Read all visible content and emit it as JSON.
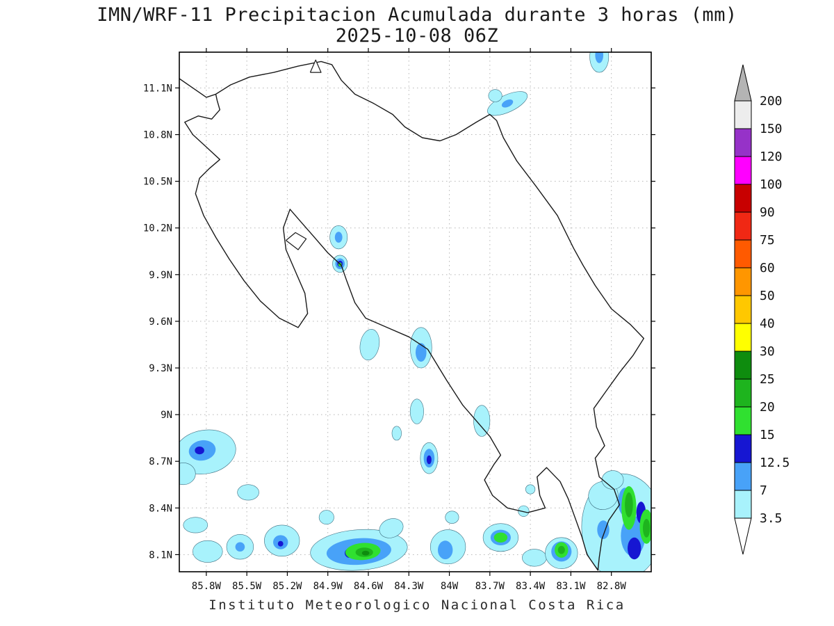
{
  "title": {
    "line1": "IMN/WRF-11 Precipitacion Acumulada durante 3 horas (mm)",
    "line2": "2025-10-08 06Z"
  },
  "footer": {
    "caption": "Instituto Meteorologico Nacional Costa Rica"
  },
  "chart_data": {
    "type": "heatmap",
    "title": "IMN/WRF-11 Precipitacion Acumulada durante 3 horas (mm)",
    "subtitle": "2025-10-08 06Z",
    "units": "mm",
    "region": "Costa Rica",
    "grid": {
      "style": "dotted",
      "color": "#b4b4b4"
    },
    "frame_color": "#000000",
    "coast_color": "#1a1a1a",
    "lon_axis": {
      "ticks": [
        "85.8W",
        "85.5W",
        "85.2W",
        "84.9W",
        "84.6W",
        "84.3W",
        "84W",
        "83.7W",
        "83.4W",
        "83.1W",
        "82.8W"
      ],
      "range_w": [
        86.0,
        82.505
      ]
    },
    "lat_axis": {
      "ticks": [
        "11.1N",
        "10.8N",
        "10.5N",
        "10.2N",
        "9.9N",
        "9.6N",
        "9.3N",
        "9N",
        "8.7N",
        "8.4N",
        "8.1N"
      ],
      "range": [
        7.99,
        11.33
      ]
    },
    "colorbar": {
      "levels": [
        "3.5",
        "7",
        "12.5",
        "15",
        "20",
        "25",
        "30",
        "40",
        "50",
        "60",
        "75",
        "90",
        "100",
        "120",
        "150",
        "200"
      ],
      "segment_colors_bottom_to_top": [
        "#a8f2fc",
        "#48a2f8",
        "#1616d2",
        "#30e030",
        "#1eb41e",
        "#0e8c0e",
        "#ffff00",
        "#ffc800",
        "#ff9600",
        "#ff5a00",
        "#f02814",
        "#c80000",
        "#ff00ff",
        "#9632c8",
        "#ededed"
      ],
      "under_color": "#ffffff",
      "over_color": "#b4b4b4",
      "level_colors": {
        "3.5": "#a8f2fc",
        "7": "#48a2f8",
        "12.5": "#1616d2",
        "15": "#30e030",
        "20": "#1eb41e",
        "25": "#0e8c0e"
      }
    },
    "coastline": {
      "mainland": [
        [
          86.0,
          11.16
        ],
        [
          85.9,
          11.1
        ],
        [
          85.8,
          11.04
        ],
        [
          85.73,
          11.06
        ],
        [
          85.62,
          11.12
        ],
        [
          85.48,
          11.17
        ],
        [
          85.3,
          11.2
        ],
        [
          85.12,
          11.24
        ],
        [
          84.95,
          11.27
        ],
        [
          84.87,
          11.25
        ],
        [
          84.8,
          11.15
        ],
        [
          84.7,
          11.06
        ],
        [
          84.56,
          11.0
        ],
        [
          84.42,
          10.93
        ],
        [
          84.33,
          10.85
        ],
        [
          84.2,
          10.78
        ],
        [
          84.07,
          10.76
        ],
        [
          83.95,
          10.8
        ],
        [
          83.8,
          10.88
        ],
        [
          83.7,
          10.93
        ],
        [
          83.65,
          10.89
        ],
        [
          83.6,
          10.78
        ],
        [
          83.5,
          10.63
        ],
        [
          83.36,
          10.47
        ],
        [
          83.2,
          10.28
        ],
        [
          83.08,
          10.07
        ],
        [
          83.01,
          9.96
        ],
        [
          82.92,
          9.83
        ],
        [
          82.8,
          9.68
        ],
        [
          82.66,
          9.58
        ],
        [
          82.56,
          9.49
        ],
        [
          82.64,
          9.38
        ],
        [
          82.74,
          9.27
        ],
        [
          82.84,
          9.15
        ],
        [
          82.93,
          9.04
        ],
        [
          82.91,
          8.92
        ],
        [
          82.85,
          8.8
        ],
        [
          82.92,
          8.72
        ],
        [
          82.89,
          8.6
        ],
        [
          82.78,
          8.52
        ],
        [
          82.74,
          8.42
        ],
        [
          82.82,
          8.32
        ],
        [
          82.87,
          8.2
        ],
        [
          82.89,
          8.08
        ],
        [
          82.9,
          8.0
        ],
        [
          82.98,
          8.1
        ],
        [
          83.02,
          8.22
        ],
        [
          83.07,
          8.34
        ],
        [
          83.12,
          8.46
        ],
        [
          83.18,
          8.57
        ],
        [
          83.28,
          8.66
        ],
        [
          83.35,
          8.6
        ],
        [
          83.33,
          8.48
        ],
        [
          83.29,
          8.4
        ],
        [
          83.42,
          8.37
        ],
        [
          83.57,
          8.4
        ],
        [
          83.68,
          8.48
        ],
        [
          83.74,
          8.58
        ],
        [
          83.67,
          8.68
        ],
        [
          83.62,
          8.74
        ],
        [
          83.7,
          8.86
        ],
        [
          83.8,
          8.96
        ],
        [
          83.9,
          9.06
        ],
        [
          84.02,
          9.22
        ],
        [
          84.16,
          9.42
        ],
        [
          84.3,
          9.5
        ],
        [
          84.46,
          9.56
        ],
        [
          84.62,
          9.62
        ],
        [
          84.7,
          9.72
        ],
        [
          84.76,
          9.86
        ],
        [
          84.8,
          9.96
        ],
        [
          84.9,
          10.04
        ],
        [
          85.0,
          10.14
        ],
        [
          85.1,
          10.24
        ],
        [
          85.18,
          10.32
        ],
        [
          85.23,
          10.2
        ],
        [
          85.21,
          10.06
        ],
        [
          85.14,
          9.92
        ],
        [
          85.07,
          9.78
        ],
        [
          85.05,
          9.65
        ],
        [
          85.12,
          9.56
        ],
        [
          85.26,
          9.62
        ],
        [
          85.4,
          9.73
        ],
        [
          85.52,
          9.86
        ],
        [
          85.63,
          10.0
        ],
        [
          85.73,
          10.14
        ],
        [
          85.82,
          10.28
        ],
        [
          85.88,
          10.42
        ],
        [
          85.85,
          10.52
        ],
        [
          85.78,
          10.58
        ],
        [
          85.7,
          10.64
        ],
        [
          85.8,
          10.72
        ],
        [
          85.9,
          10.8
        ],
        [
          85.96,
          10.88
        ],
        [
          85.86,
          10.92
        ],
        [
          85.76,
          10.9
        ],
        [
          85.7,
          10.96
        ],
        [
          85.72,
          11.02
        ],
        [
          85.73,
          11.06
        ]
      ],
      "chira_island": [
        [
          85.21,
          10.12
        ],
        [
          85.14,
          10.17
        ],
        [
          85.06,
          10.13
        ],
        [
          85.12,
          10.06
        ],
        [
          85.21,
          10.12
        ]
      ],
      "lake_islet": [
        [
          85.03,
          11.2
        ],
        [
          84.99,
          11.28
        ],
        [
          84.95,
          11.2
        ],
        [
          85.03,
          11.2
        ]
      ]
    },
    "precip_blobs": [
      {
        "lon": 82.89,
        "lat": 11.3,
        "rx": 0.07,
        "ry": 0.1,
        "rot": 0,
        "level": "3.5"
      },
      {
        "lon": 83.57,
        "lat": 11.0,
        "rx": 0.16,
        "ry": 0.055,
        "rot": -25,
        "level": "3.5"
      },
      {
        "lon": 83.66,
        "lat": 11.05,
        "rx": 0.05,
        "ry": 0.04,
        "rot": 0,
        "level": "3.5"
      },
      {
        "lon": 84.82,
        "lat": 10.14,
        "rx": 0.065,
        "ry": 0.075,
        "rot": 0,
        "level": "3.5"
      },
      {
        "lon": 84.81,
        "lat": 9.97,
        "rx": 0.055,
        "ry": 0.055,
        "rot": 0,
        "level": "3.5"
      },
      {
        "lon": 84.59,
        "lat": 9.45,
        "rx": 0.07,
        "ry": 0.1,
        "rot": 10,
        "level": "3.5"
      },
      {
        "lon": 84.21,
        "lat": 9.43,
        "rx": 0.08,
        "ry": 0.13,
        "rot": 0,
        "level": "3.5"
      },
      {
        "lon": 84.24,
        "lat": 9.02,
        "rx": 0.05,
        "ry": 0.08,
        "rot": 0,
        "level": "3.5"
      },
      {
        "lon": 84.39,
        "lat": 8.88,
        "rx": 0.035,
        "ry": 0.045,
        "rot": 0,
        "level": "3.5"
      },
      {
        "lon": 83.76,
        "lat": 8.96,
        "rx": 0.06,
        "ry": 0.1,
        "rot": 0,
        "level": "3.5"
      },
      {
        "lon": 84.15,
        "lat": 8.72,
        "rx": 0.065,
        "ry": 0.1,
        "rot": 0,
        "level": "3.5"
      },
      {
        "lon": 85.81,
        "lat": 8.76,
        "rx": 0.23,
        "ry": 0.14,
        "rot": -10,
        "level": "3.5"
      },
      {
        "lon": 85.97,
        "lat": 8.62,
        "rx": 0.09,
        "ry": 0.07,
        "rot": 0,
        "level": "3.5"
      },
      {
        "lon": 85.49,
        "lat": 8.5,
        "rx": 0.08,
        "ry": 0.05,
        "rot": 0,
        "level": "3.5"
      },
      {
        "lon": 85.88,
        "lat": 8.29,
        "rx": 0.09,
        "ry": 0.05,
        "rot": 0,
        "level": "3.5"
      },
      {
        "lon": 85.79,
        "lat": 8.12,
        "rx": 0.11,
        "ry": 0.07,
        "rot": 0,
        "level": "3.5"
      },
      {
        "lon": 85.55,
        "lat": 8.15,
        "rx": 0.1,
        "ry": 0.08,
        "rot": 0,
        "level": "3.5"
      },
      {
        "lon": 85.24,
        "lat": 8.19,
        "rx": 0.13,
        "ry": 0.1,
        "rot": 0,
        "level": "3.5"
      },
      {
        "lon": 84.91,
        "lat": 8.34,
        "rx": 0.055,
        "ry": 0.045,
        "rot": 0,
        "level": "3.5"
      },
      {
        "lon": 84.67,
        "lat": 8.13,
        "rx": 0.36,
        "ry": 0.13,
        "rot": -4,
        "level": "3.5"
      },
      {
        "lon": 84.43,
        "lat": 8.27,
        "rx": 0.09,
        "ry": 0.06,
        "rot": -20,
        "level": "3.5"
      },
      {
        "lon": 84.01,
        "lat": 8.15,
        "rx": 0.13,
        "ry": 0.11,
        "rot": 0,
        "level": "3.5"
      },
      {
        "lon": 83.98,
        "lat": 8.34,
        "rx": 0.05,
        "ry": 0.04,
        "rot": 0,
        "level": "3.5"
      },
      {
        "lon": 83.62,
        "lat": 8.21,
        "rx": 0.13,
        "ry": 0.09,
        "rot": 0,
        "level": "3.5"
      },
      {
        "lon": 83.37,
        "lat": 8.08,
        "rx": 0.09,
        "ry": 0.055,
        "rot": 0,
        "level": "3.5"
      },
      {
        "lon": 83.17,
        "lat": 8.11,
        "rx": 0.12,
        "ry": 0.1,
        "rot": 0,
        "level": "3.5"
      },
      {
        "lon": 82.72,
        "lat": 8.28,
        "rx": 0.3,
        "ry": 0.34,
        "rot": 0,
        "level": "3.5"
      },
      {
        "lon": 82.86,
        "lat": 8.48,
        "rx": 0.11,
        "ry": 0.09,
        "rot": -20,
        "level": "3.5"
      },
      {
        "lon": 82.79,
        "lat": 8.58,
        "rx": 0.08,
        "ry": 0.06,
        "rot": 0,
        "level": "3.5"
      },
      {
        "lon": 83.45,
        "lat": 8.38,
        "rx": 0.04,
        "ry": 0.035,
        "rot": 0,
        "level": "3.5"
      },
      {
        "lon": 83.4,
        "lat": 8.52,
        "rx": 0.035,
        "ry": 0.03,
        "rot": 0,
        "level": "3.5"
      },
      {
        "lon": 82.89,
        "lat": 11.31,
        "rx": 0.03,
        "ry": 0.05,
        "rot": 0,
        "level": "7"
      },
      {
        "lon": 83.57,
        "lat": 11.0,
        "rx": 0.045,
        "ry": 0.022,
        "rot": -25,
        "level": "7"
      },
      {
        "lon": 84.82,
        "lat": 10.14,
        "rx": 0.028,
        "ry": 0.035,
        "rot": 0,
        "level": "7"
      },
      {
        "lon": 84.81,
        "lat": 9.97,
        "rx": 0.035,
        "ry": 0.035,
        "rot": 0,
        "level": "7"
      },
      {
        "lon": 84.21,
        "lat": 9.4,
        "rx": 0.04,
        "ry": 0.06,
        "rot": 0,
        "level": "7"
      },
      {
        "lon": 84.15,
        "lat": 8.72,
        "rx": 0.04,
        "ry": 0.06,
        "rot": 0,
        "level": "7"
      },
      {
        "lon": 85.83,
        "lat": 8.77,
        "rx": 0.1,
        "ry": 0.065,
        "rot": -10,
        "level": "7"
      },
      {
        "lon": 85.55,
        "lat": 8.15,
        "rx": 0.035,
        "ry": 0.03,
        "rot": 0,
        "level": "7"
      },
      {
        "lon": 85.25,
        "lat": 8.18,
        "rx": 0.055,
        "ry": 0.045,
        "rot": 0,
        "level": "7"
      },
      {
        "lon": 84.67,
        "lat": 8.12,
        "rx": 0.24,
        "ry": 0.085,
        "rot": -4,
        "level": "7"
      },
      {
        "lon": 84.03,
        "lat": 8.13,
        "rx": 0.055,
        "ry": 0.06,
        "rot": 0,
        "level": "7"
      },
      {
        "lon": 83.62,
        "lat": 8.21,
        "rx": 0.075,
        "ry": 0.05,
        "rot": 0,
        "level": "7"
      },
      {
        "lon": 83.17,
        "lat": 8.12,
        "rx": 0.075,
        "ry": 0.065,
        "rot": 0,
        "level": "7"
      },
      {
        "lon": 82.64,
        "lat": 8.22,
        "rx": 0.09,
        "ry": 0.13,
        "rot": 0,
        "level": "7"
      },
      {
        "lon": 82.86,
        "lat": 8.26,
        "rx": 0.045,
        "ry": 0.06,
        "rot": 0,
        "level": "7"
      },
      {
        "lon": 82.7,
        "lat": 8.44,
        "rx": 0.05,
        "ry": 0.09,
        "rot": 0,
        "level": "7"
      },
      {
        "lon": 84.81,
        "lat": 9.97,
        "rx": 0.02,
        "ry": 0.02,
        "rot": 0,
        "level": "12.5"
      },
      {
        "lon": 84.15,
        "lat": 8.71,
        "rx": 0.018,
        "ry": 0.028,
        "rot": 0,
        "level": "12.5"
      },
      {
        "lon": 85.85,
        "lat": 8.77,
        "rx": 0.035,
        "ry": 0.025,
        "rot": 0,
        "level": "12.5"
      },
      {
        "lon": 84.74,
        "lat": 8.11,
        "rx": 0.035,
        "ry": 0.03,
        "rot": 0,
        "level": "12.5"
      },
      {
        "lon": 82.63,
        "lat": 8.14,
        "rx": 0.05,
        "ry": 0.07,
        "rot": 0,
        "level": "12.5"
      },
      {
        "lon": 82.58,
        "lat": 8.37,
        "rx": 0.035,
        "ry": 0.07,
        "rot": 0,
        "level": "12.5"
      },
      {
        "lon": 85.25,
        "lat": 8.17,
        "rx": 0.02,
        "ry": 0.018,
        "rot": 0,
        "level": "12.5"
      },
      {
        "lon": 84.64,
        "lat": 8.12,
        "rx": 0.13,
        "ry": 0.055,
        "rot": -4,
        "level": "15"
      },
      {
        "lon": 83.62,
        "lat": 8.21,
        "rx": 0.05,
        "ry": 0.032,
        "rot": 0,
        "level": "15"
      },
      {
        "lon": 83.17,
        "lat": 8.13,
        "rx": 0.05,
        "ry": 0.05,
        "rot": 0,
        "level": "15"
      },
      {
        "lon": 82.67,
        "lat": 8.4,
        "rx": 0.055,
        "ry": 0.14,
        "rot": 0,
        "level": "15"
      },
      {
        "lon": 82.54,
        "lat": 8.28,
        "rx": 0.05,
        "ry": 0.11,
        "rot": 0,
        "level": "15"
      },
      {
        "lon": 84.81,
        "lat": 9.965,
        "rx": 0.013,
        "ry": 0.013,
        "rot": 0,
        "level": "15"
      },
      {
        "lon": 84.63,
        "lat": 8.115,
        "rx": 0.065,
        "ry": 0.03,
        "rot": 0,
        "level": "20"
      },
      {
        "lon": 82.67,
        "lat": 8.42,
        "rx": 0.03,
        "ry": 0.08,
        "rot": 0,
        "level": "20"
      },
      {
        "lon": 82.54,
        "lat": 8.27,
        "rx": 0.027,
        "ry": 0.06,
        "rot": 0,
        "level": "20"
      },
      {
        "lon": 83.17,
        "lat": 8.13,
        "rx": 0.026,
        "ry": 0.026,
        "rot": 0,
        "level": "20"
      },
      {
        "lon": 84.62,
        "lat": 8.11,
        "rx": 0.028,
        "ry": 0.015,
        "rot": 0,
        "level": "25"
      }
    ]
  }
}
